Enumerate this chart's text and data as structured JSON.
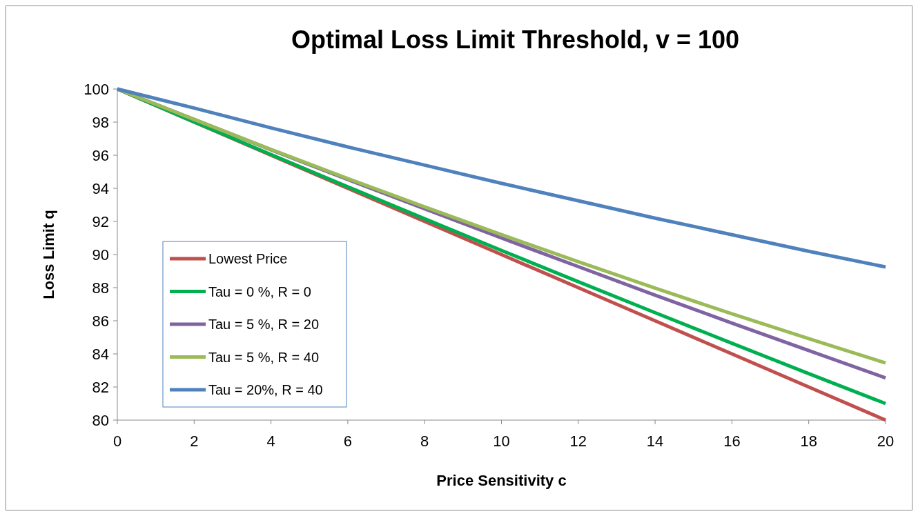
{
  "chart_data": {
    "type": "line",
    "title": "Optimal Loss Limit Threshold, v = 100",
    "xlabel": "Price Sensitivity c",
    "ylabel": "Loss Limit q",
    "x": [
      0,
      2,
      4,
      6,
      8,
      10,
      12,
      14,
      16,
      18,
      20
    ],
    "series": [
      {
        "name": "Lowest Price",
        "color": "#c0504d",
        "values": [
          100,
          98,
          96,
          94,
          92,
          90,
          88,
          86,
          84,
          82,
          80
        ]
      },
      {
        "name": "Tau = 0 %, R = 0",
        "color": "#00b050",
        "values": [
          100,
          98.01,
          96.04,
          94.09,
          92.16,
          90.25,
          88.36,
          86.49,
          84.64,
          82.81,
          81
        ]
      },
      {
        "name": "Tau = 5 %, R = 20",
        "color": "#8064a2",
        "values": [
          100,
          98.16,
          96.33,
          94.53,
          92.76,
          91.0,
          89.27,
          87.55,
          85.86,
          84.2,
          82.55
        ]
      },
      {
        "name": "Tau = 5 %, R = 40",
        "color": "#9bbb59",
        "values": [
          100,
          98.16,
          96.35,
          94.59,
          92.88,
          91.2,
          89.57,
          87.97,
          86.42,
          84.92,
          83.45
        ]
      },
      {
        "name": "Tau = 20%, R = 40",
        "color": "#4f81bd",
        "values": [
          100,
          98.85,
          97.65,
          96.5,
          95.4,
          94.3,
          93.25,
          92.2,
          91.2,
          90.2,
          89.25
        ]
      }
    ],
    "xlim": [
      0,
      20
    ],
    "xticks": [
      0,
      2,
      4,
      6,
      8,
      10,
      12,
      14,
      16,
      18,
      20
    ],
    "ylim": [
      80,
      100
    ],
    "yticks": [
      80,
      82,
      84,
      86,
      88,
      90,
      92,
      94,
      96,
      98,
      100
    ],
    "grid": false,
    "legend": "bottom left",
    "marker": "none",
    "line_style": "solid"
  }
}
